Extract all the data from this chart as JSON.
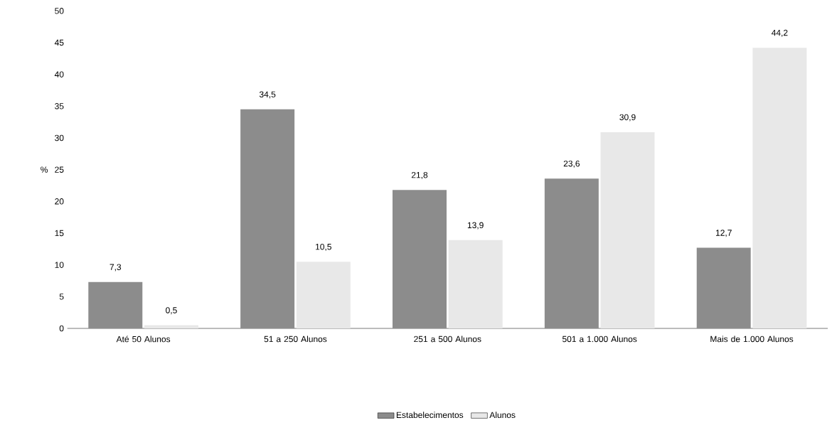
{
  "chart_data": {
    "type": "bar",
    "ylabel": "%",
    "categories": [
      "Até 50 Alunos",
      "51 a 250 Alunos",
      "251 a 500 Alunos",
      "501 a 1.000 Alunos",
      "Mais de 1.000 Alunos"
    ],
    "series": [
      {
        "name": "Estabelecimentos",
        "color": "#8c8c8c",
        "values": [
          7.3,
          34.5,
          21.8,
          23.6,
          12.7
        ],
        "value_labels": [
          "7,3",
          "34,5",
          "21,8",
          "23,6",
          "12,7"
        ]
      },
      {
        "name": "Alunos",
        "color": "#e8e8e8",
        "values": [
          0.5,
          10.5,
          13.9,
          30.9,
          44.2
        ],
        "value_labels": [
          "0,5",
          "10,5",
          "13,9",
          "30,9",
          "44,2"
        ]
      }
    ],
    "ylim": [
      0,
      50
    ],
    "yticks": [
      0,
      5,
      10,
      15,
      20,
      25,
      30,
      35,
      40,
      45,
      50
    ],
    "legend": "bottom"
  }
}
